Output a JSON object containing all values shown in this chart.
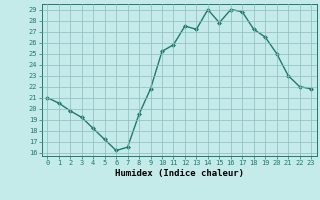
{
  "x": [
    0,
    1,
    2,
    3,
    4,
    5,
    6,
    7,
    8,
    9,
    10,
    11,
    12,
    13,
    14,
    15,
    16,
    17,
    18,
    19,
    20,
    21,
    22,
    23
  ],
  "y": [
    21.0,
    20.5,
    19.8,
    19.2,
    18.2,
    17.2,
    16.2,
    16.5,
    19.5,
    21.8,
    25.2,
    25.8,
    27.5,
    27.2,
    29.0,
    27.8,
    29.0,
    28.8,
    27.2,
    26.5,
    25.0,
    23.0,
    22.0,
    21.8
  ],
  "xlabel": "Humidex (Indice chaleur)",
  "line_color": "#1e7b6e",
  "marker_color": "#1e7b6e",
  "bg_color": "#c5eaea",
  "grid_color": "#8bbcbc",
  "ylim": [
    16,
    29
  ],
  "xlim": [
    -0.5,
    23.5
  ],
  "yticks": [
    16,
    17,
    18,
    19,
    20,
    21,
    22,
    23,
    24,
    25,
    26,
    27,
    28,
    29
  ],
  "xticks": [
    0,
    1,
    2,
    3,
    4,
    5,
    6,
    7,
    8,
    9,
    10,
    11,
    12,
    13,
    14,
    15,
    16,
    17,
    18,
    19,
    20,
    21,
    22,
    23
  ]
}
